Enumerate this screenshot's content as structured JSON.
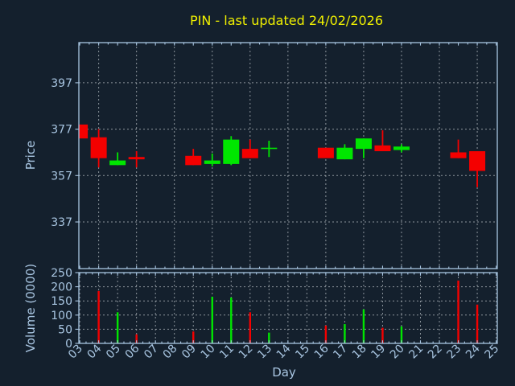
{
  "title": "PIN - last updated 24/02/2026",
  "price_axis": {
    "label": "Price",
    "ticks": [
      397,
      377,
      357,
      337
    ]
  },
  "volume_axis": {
    "label": "Volume (0000)",
    "ticks": [
      250,
      200,
      150,
      100,
      50,
      0
    ]
  },
  "day_axis": {
    "label": "Day",
    "ticks": [
      "03",
      "04",
      "05",
      "06",
      "07",
      "08",
      "09",
      "10",
      "11",
      "12",
      "13",
      "14",
      "15",
      "16",
      "17",
      "18",
      "19",
      "20",
      "21",
      "22",
      "23",
      "24",
      "25"
    ]
  },
  "colors": {
    "background": "#14202d",
    "axis": "#a9c6e2",
    "grid": "#aab2b8",
    "up": "#00e600",
    "down": "#f40000",
    "title": "#f0f000"
  },
  "chart_data": {
    "type": "candlestick+volume",
    "title": "PIN - last updated 24/02/2026",
    "xlabel": "Day",
    "ylabel_price": "Price",
    "ylabel_volume": "Volume (0000)",
    "xlim": [
      2.953,
      25.06
    ],
    "price_ylim": [
      316.9,
      414.3
    ],
    "volume_ylim": [
      0,
      250
    ],
    "grid": true,
    "price_grid_days": [
      4,
      6,
      8,
      10,
      12,
      14,
      16,
      18,
      20,
      22,
      24
    ],
    "volume_grid_days": [
      3,
      4,
      5,
      6,
      7,
      8,
      9,
      10,
      11,
      12,
      13,
      14,
      15,
      16,
      17,
      18,
      19,
      20,
      21,
      22,
      23,
      24,
      25
    ],
    "candles": [
      {
        "day": 3,
        "open": 379,
        "high": 379,
        "low": 373,
        "close": 373,
        "volume": 0
      },
      {
        "day": 4,
        "open": 373.5,
        "high": 377,
        "low": 360.5,
        "close": 364.5,
        "volume": 185
      },
      {
        "day": 5,
        "open": 361.5,
        "high": 367,
        "low": 361.5,
        "close": 363.5,
        "volume": 110
      },
      {
        "day": 6,
        "open": 365,
        "high": 367.5,
        "low": 360.5,
        "close": 364,
        "volume": 32
      },
      {
        "day": 9,
        "open": 365.5,
        "high": 368.5,
        "low": 361.5,
        "close": 361.5,
        "volume": 42
      },
      {
        "day": 10,
        "open": 362,
        "high": 366.5,
        "low": 361,
        "close": 363.5,
        "volume": 165
      },
      {
        "day": 11,
        "open": 362,
        "high": 374,
        "low": 361.5,
        "close": 372.5,
        "volume": 162
      },
      {
        "day": 12,
        "open": 368.5,
        "high": 372.5,
        "low": 364.5,
        "close": 364.5,
        "volume": 110
      },
      {
        "day": 13,
        "open": 368.5,
        "high": 372,
        "low": 365,
        "close": 369,
        "volume": 38
      },
      {
        "day": 16,
        "open": 369,
        "high": 369,
        "low": 364.5,
        "close": 364.5,
        "volume": 63
      },
      {
        "day": 17,
        "open": 364,
        "high": 370.5,
        "low": 364,
        "close": 369,
        "volume": 68
      },
      {
        "day": 18,
        "open": 368.5,
        "high": 373,
        "low": 364.5,
        "close": 373,
        "volume": 120
      },
      {
        "day": 19,
        "open": 370,
        "high": 376.5,
        "low": 367.5,
        "close": 367.5,
        "volume": 55
      },
      {
        "day": 20,
        "open": 368,
        "high": 370.5,
        "low": 367,
        "close": 369.5,
        "volume": 60
      },
      {
        "day": 23,
        "open": 367,
        "high": 372.5,
        "low": 364.5,
        "close": 364.5,
        "volume": 222
      },
      {
        "day": 24,
        "open": 367.5,
        "high": 367.5,
        "low": 352,
        "close": 359,
        "volume": 137
      }
    ]
  }
}
